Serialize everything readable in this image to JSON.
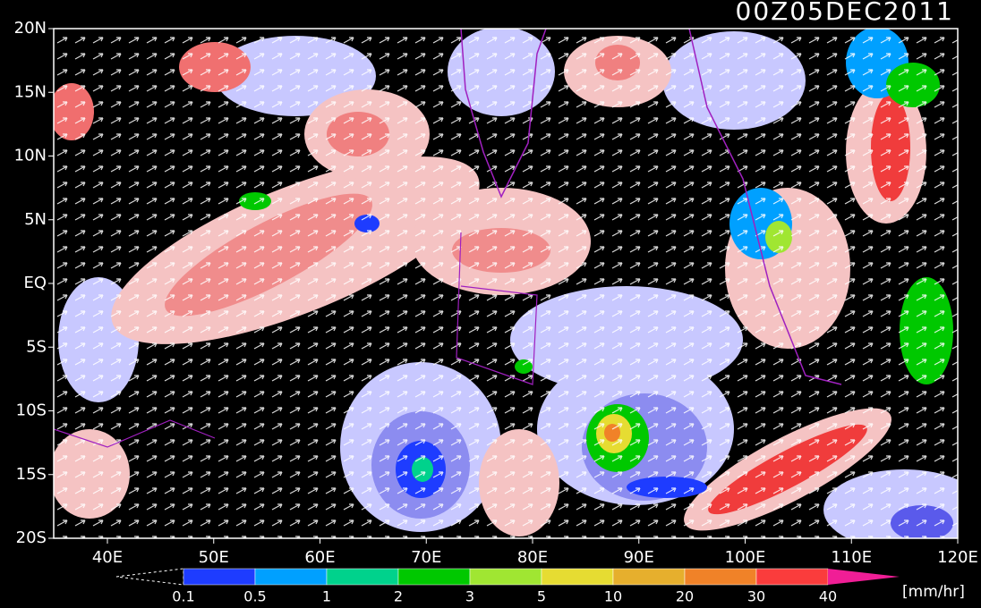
{
  "title": "00Z05DEC2011",
  "lat_labels": [
    "20N",
    "15N",
    "10N",
    "5N",
    "EQ",
    "5S",
    "10S",
    "15S",
    "20S"
  ],
  "lon_labels": [
    "40E",
    "50E",
    "60E",
    "70E",
    "80E",
    "90E",
    "100E",
    "110E",
    "120E"
  ],
  "colorbar": {
    "labels": [
      "0.1",
      "0.5",
      "1",
      "2",
      "3",
      "5",
      "10",
      "20",
      "30",
      "40"
    ],
    "colors": [
      "#1e3cff",
      "#00a0ff",
      "#00d28c",
      "#00c800",
      "#a0e632",
      "#e6dc32",
      "#e6af2d",
      "#f08228",
      "#fa3c3c",
      "#f01e96"
    ],
    "unit": "[mm/hr]"
  }
}
